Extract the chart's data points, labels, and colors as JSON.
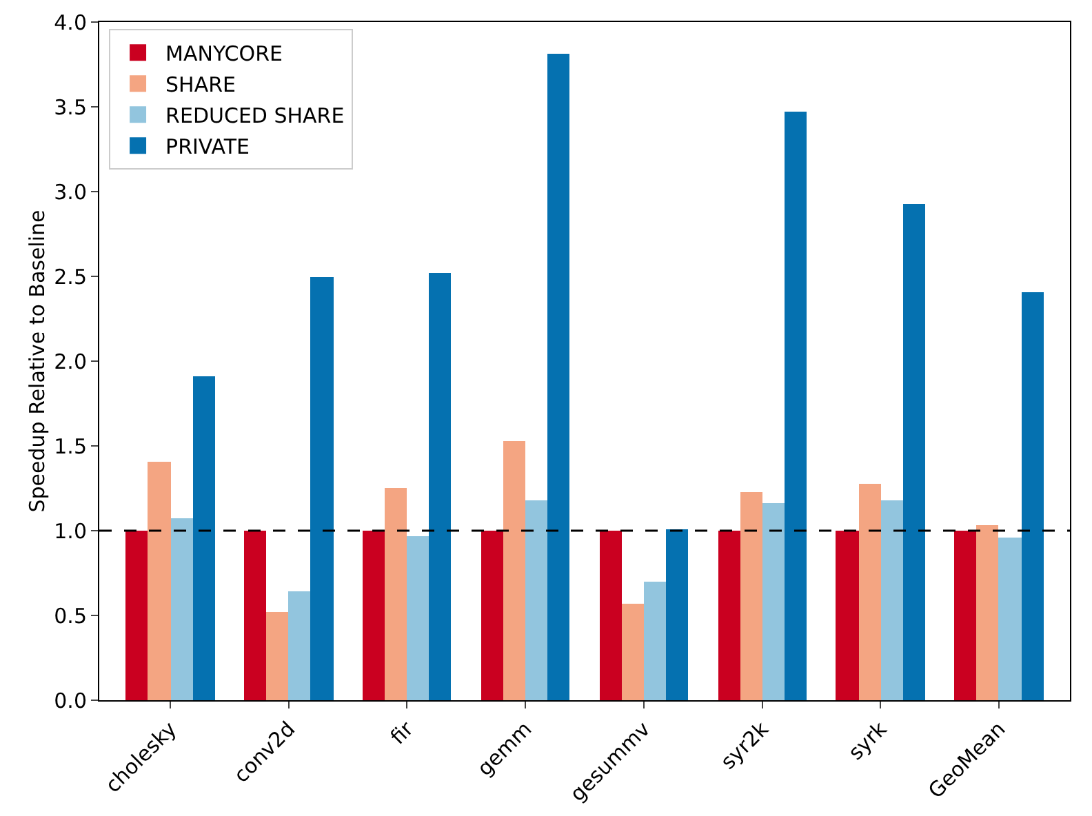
{
  "chart_data": {
    "type": "bar",
    "ylabel": "Speedup Relative to Baseline",
    "categories": [
      "cholesky",
      "conv2d",
      "fir",
      "gemm",
      "gesummv",
      "syr2k",
      "syrk",
      "GeoMean"
    ],
    "series": [
      {
        "name": "MANYCORE",
        "color": "#ca0020",
        "values": [
          1.0,
          1.0,
          1.0,
          1.0,
          1.0,
          1.0,
          1.0,
          1.0
        ]
      },
      {
        "name": "SHARE",
        "color": "#f4a582",
        "values": [
          1.41,
          0.52,
          1.25,
          1.53,
          0.57,
          1.23,
          1.28,
          1.03
        ]
      },
      {
        "name": "REDUCED SHARE",
        "color": "#92c5de",
        "values": [
          1.07,
          0.64,
          0.97,
          1.18,
          0.7,
          1.16,
          1.18,
          0.96
        ]
      },
      {
        "name": "PRIVATE",
        "color": "#0571b0",
        "values": [
          1.91,
          2.5,
          2.52,
          3.81,
          1.01,
          3.47,
          2.93,
          2.41
        ]
      }
    ],
    "ylim": [
      0,
      4.0
    ],
    "yticks": [
      {
        "value": 0,
        "label": "0.0"
      },
      {
        "value": 0.5,
        "label": "0.5"
      },
      {
        "value": 1,
        "label": "1.0"
      },
      {
        "value": 1.5,
        "label": "1.5"
      },
      {
        "value": 2,
        "label": "2.0"
      },
      {
        "value": 2.5,
        "label": "2.5"
      },
      {
        "value": 3,
        "label": "3.0"
      },
      {
        "value": 3.5,
        "label": "3.5"
      },
      {
        "value": 4,
        "label": "4.0"
      }
    ],
    "ref_lines": [
      {
        "axis": "y",
        "value": 1.0,
        "color": "#000000",
        "line_style": "dashed"
      }
    ],
    "grid": false,
    "legend": "top left"
  }
}
